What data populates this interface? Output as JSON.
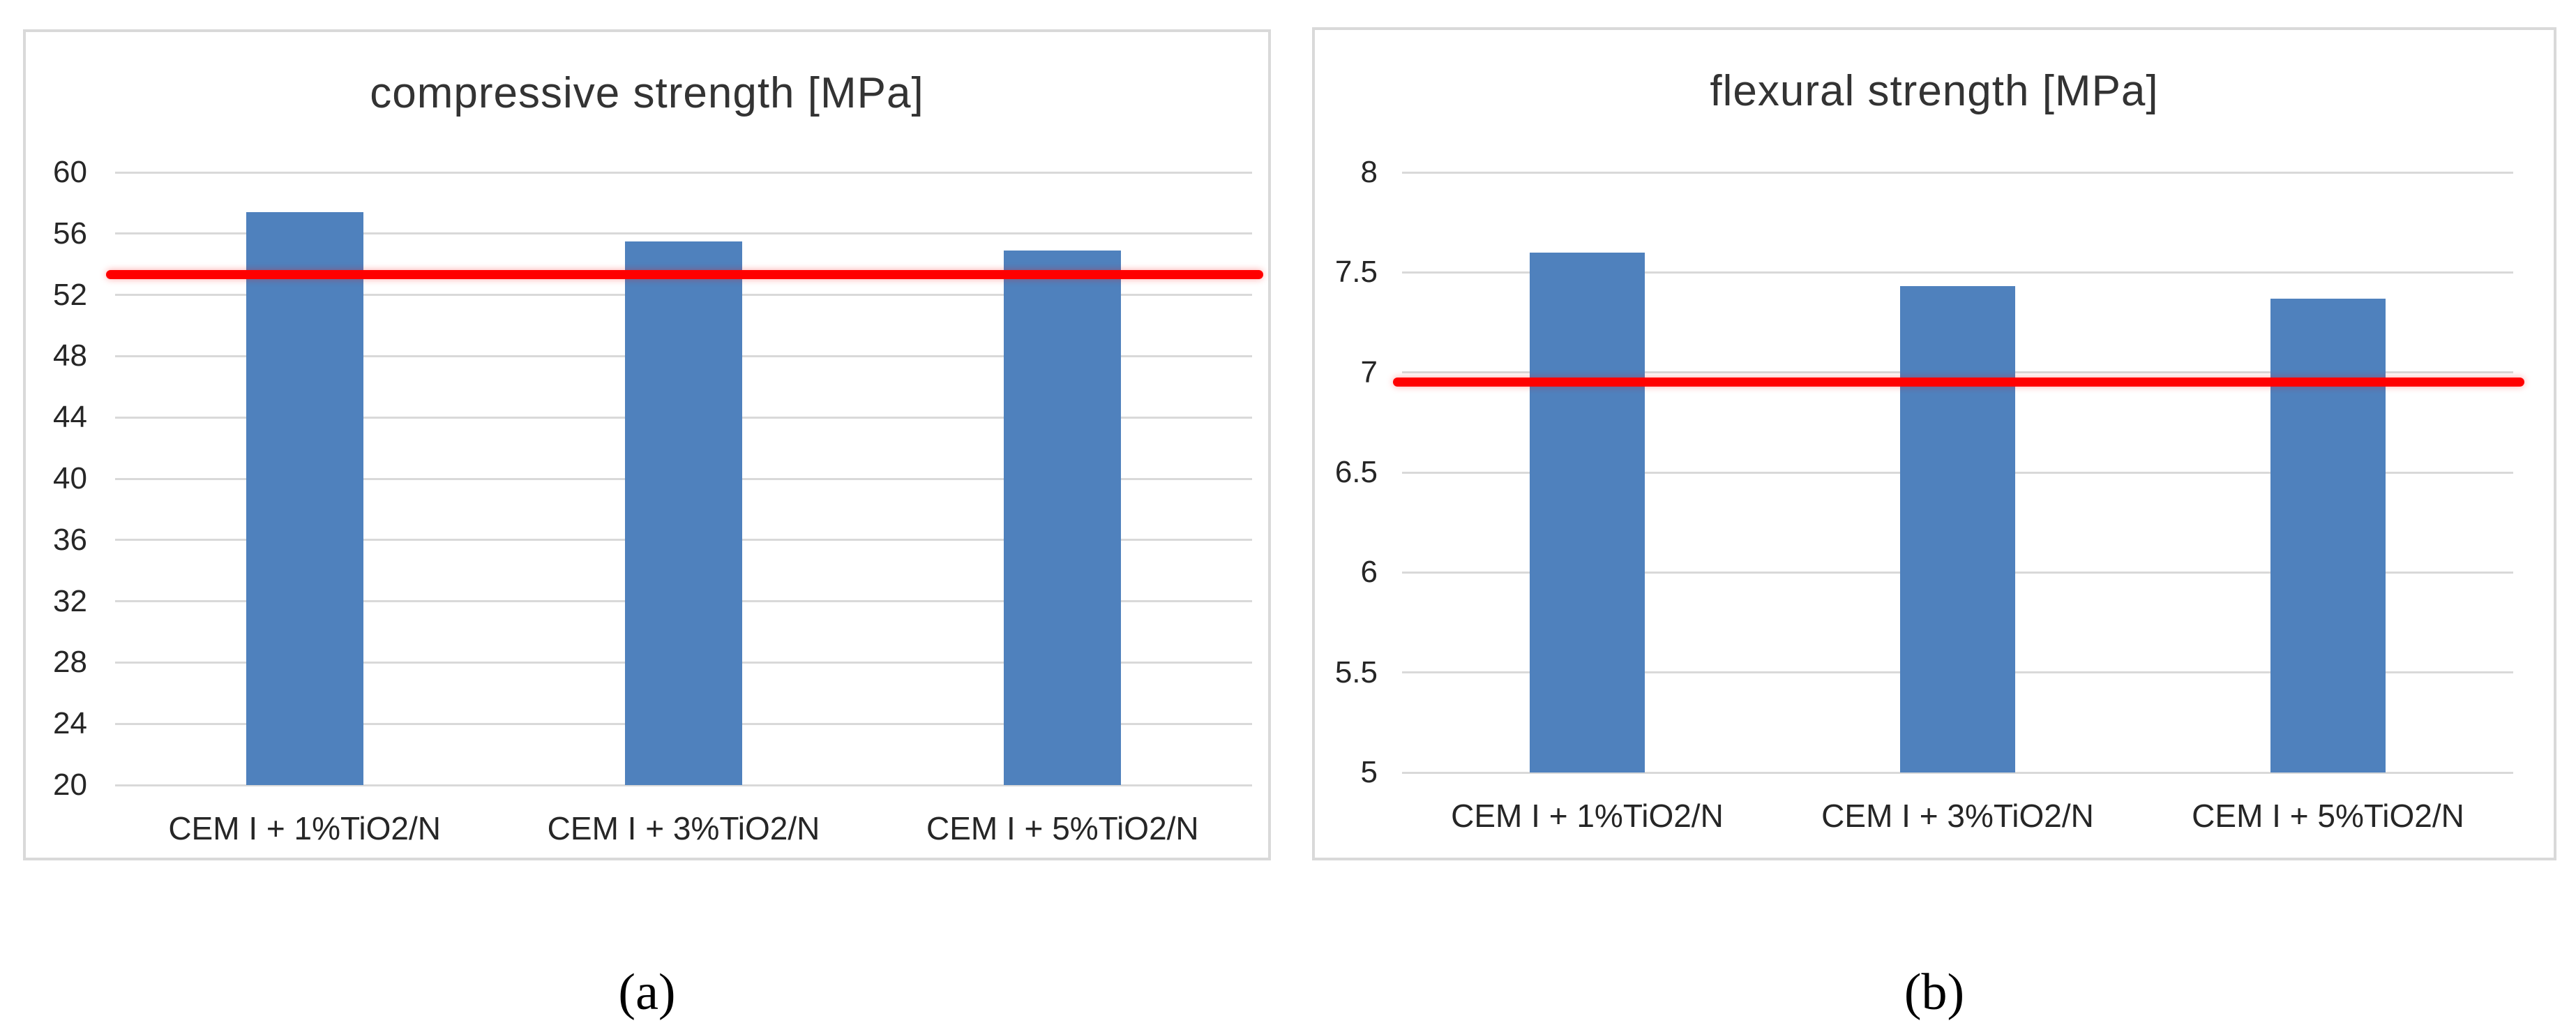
{
  "figure": {
    "captions": [
      "(a)",
      "(b)"
    ]
  },
  "chart_data": [
    {
      "type": "bar",
      "title": "compressive strength [MPa]",
      "categories": [
        "CEM I + 1%TiO2/N",
        "CEM I + 3%TiO2/N",
        "CEM I + 5%TiO2/N"
      ],
      "values": [
        57.4,
        55.5,
        54.9
      ],
      "reference_line": 53.3,
      "xlabel": "",
      "ylabel": "",
      "ylim": [
        20,
        60
      ],
      "ytick_step": 4,
      "yticks": [
        20,
        24,
        28,
        32,
        36,
        40,
        44,
        48,
        52,
        56,
        60
      ],
      "ytick_labels": [
        "20",
        "24",
        "28",
        "32",
        "36",
        "40",
        "44",
        "48",
        "52",
        "56",
        "60"
      ],
      "grid": true,
      "legend": false,
      "bar_color": "#4F81BD",
      "ref_line_color": "#FF0000",
      "gridline_color": "#D9D9D9"
    },
    {
      "type": "bar",
      "title": "flexural strength [MPa]",
      "categories": [
        "CEM I + 1%TiO2/N",
        "CEM I + 3%TiO2/N",
        "CEM I + 5%TiO2/N"
      ],
      "values": [
        7.6,
        7.43,
        7.37
      ],
      "reference_line": 6.95,
      "xlabel": "",
      "ylabel": "",
      "ylim": [
        5,
        8
      ],
      "ytick_step": 0.5,
      "yticks": [
        5,
        5.5,
        6,
        6.5,
        7,
        7.5,
        8
      ],
      "ytick_labels": [
        "5",
        "5.5",
        "6",
        "6.5",
        "7",
        "7.5",
        "8"
      ],
      "grid": true,
      "legend": false,
      "bar_color": "#4F81BD",
      "ref_line_color": "#FF0000",
      "gridline_color": "#D9D9D9"
    }
  ]
}
